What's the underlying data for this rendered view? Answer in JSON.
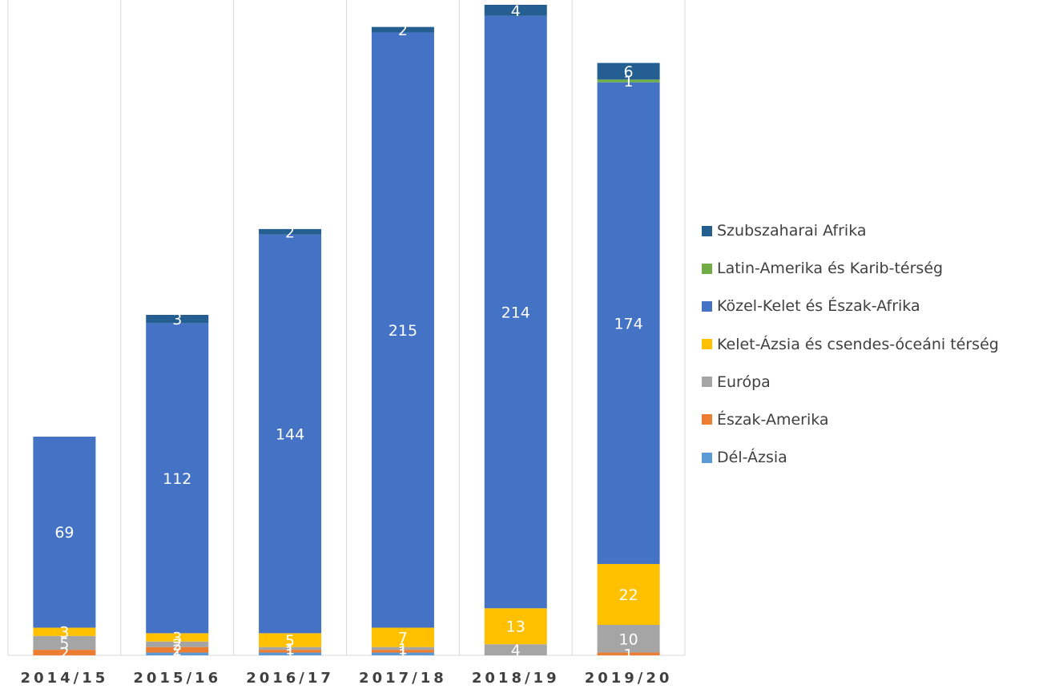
{
  "chart_data": {
    "type": "bar",
    "stacked": true,
    "categories": [
      "2014/15",
      "2015/16",
      "2016/17",
      "2017/18",
      "2018/19",
      "2019/20"
    ],
    "series": [
      {
        "name": "Dél-Ázsia",
        "color": "#5B9BD5",
        "values": [
          0,
          1,
          1,
          1,
          0,
          0
        ],
        "labels": [
          "",
          "1",
          "1",
          "1",
          "",
          ""
        ]
      },
      {
        "name": "Észak-Amerika",
        "color": "#ED7D31",
        "values": [
          2,
          2,
          1,
          1,
          0,
          1
        ],
        "labels": [
          "2",
          "2",
          "1",
          "1",
          "",
          "1"
        ]
      },
      {
        "name": "Európa",
        "color": "#A5A5A5",
        "values": [
          5,
          2,
          1,
          1,
          4,
          10
        ],
        "labels": [
          "5",
          "2",
          "1",
          "1",
          "4",
          "10"
        ]
      },
      {
        "name": "Kelet-Ázsia és csendes-óceáni térség",
        "color": "#FFC000",
        "values": [
          3,
          3,
          5,
          7,
          13,
          22
        ],
        "labels": [
          "3",
          "3",
          "5",
          "7",
          "13",
          "22"
        ]
      },
      {
        "name": "Közel-Kelet és Észak-Afrika",
        "color": "#4472C4",
        "values": [
          69,
          112,
          144,
          215,
          214,
          174
        ],
        "labels": [
          "69",
          "112",
          "144",
          "215",
          "214",
          "174"
        ]
      },
      {
        "name": "Latin-Amerika és Karib-térség",
        "color": "#70AD47",
        "values": [
          0,
          0,
          0,
          0,
          0,
          1
        ],
        "labels": [
          "",
          "",
          "",
          "",
          "",
          "1"
        ]
      },
      {
        "name": "Szubszaharai Afrika",
        "color": "#255E91",
        "values": [
          0,
          3,
          2,
          2,
          4,
          6
        ],
        "labels": [
          "",
          "3",
          "2",
          "2",
          "4",
          "6"
        ]
      }
    ],
    "legend_position": "right",
    "legend_order": [
      6,
      5,
      4,
      3,
      2,
      1,
      0
    ],
    "ylim": [
      0,
      235
    ],
    "grid": "vertical separators between categories",
    "title": "",
    "xlabel": "",
    "ylabel": ""
  }
}
